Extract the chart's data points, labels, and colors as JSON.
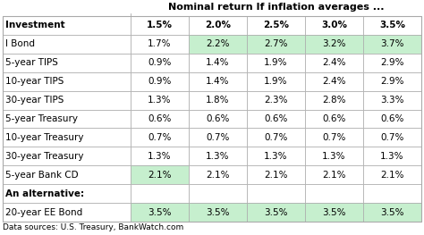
{
  "title": "Nominal return If inflation averages ...",
  "columns": [
    "Investment",
    "1.5%",
    "2.0%",
    "2.5%",
    "3.0%",
    "3.5%"
  ],
  "rows": [
    [
      "I Bond",
      "1.7%",
      "2.2%",
      "2.7%",
      "3.2%",
      "3.7%"
    ],
    [
      "5-year TIPS",
      "0.9%",
      "1.4%",
      "1.9%",
      "2.4%",
      "2.9%"
    ],
    [
      "10-year TIPS",
      "0.9%",
      "1.4%",
      "1.9%",
      "2.4%",
      "2.9%"
    ],
    [
      "30-year TIPS",
      "1.3%",
      "1.8%",
      "2.3%",
      "2.8%",
      "3.3%"
    ],
    [
      "5-year Treasury",
      "0.6%",
      "0.6%",
      "0.6%",
      "0.6%",
      "0.6%"
    ],
    [
      "10-year Treasury",
      "0.7%",
      "0.7%",
      "0.7%",
      "0.7%",
      "0.7%"
    ],
    [
      "30-year Treasury",
      "1.3%",
      "1.3%",
      "1.3%",
      "1.3%",
      "1.3%"
    ],
    [
      "5-year Bank CD",
      "2.1%",
      "2.1%",
      "2.1%",
      "2.1%",
      "2.1%"
    ],
    [
      "An alternative:",
      "",
      "",
      "",
      "",
      ""
    ],
    [
      "20-year EE Bond",
      "3.5%",
      "3.5%",
      "3.5%",
      "3.5%",
      "3.5%"
    ]
  ],
  "footer": "Data sources: U.S. Treasury, BankWatch.com",
  "green_light": "#c6efce",
  "green_cells": {
    "0": [
      2,
      3,
      4,
      5
    ],
    "7": [
      1
    ],
    "9": [
      1,
      2,
      3,
      4,
      5
    ]
  },
  "bg_color": "#ffffff",
  "border_color": "#aaaaaa",
  "text_color": "#000000",
  "alt_row": 8,
  "title_fontsize": 8.0,
  "cell_fontsize": 7.5,
  "header_fontsize": 7.5
}
